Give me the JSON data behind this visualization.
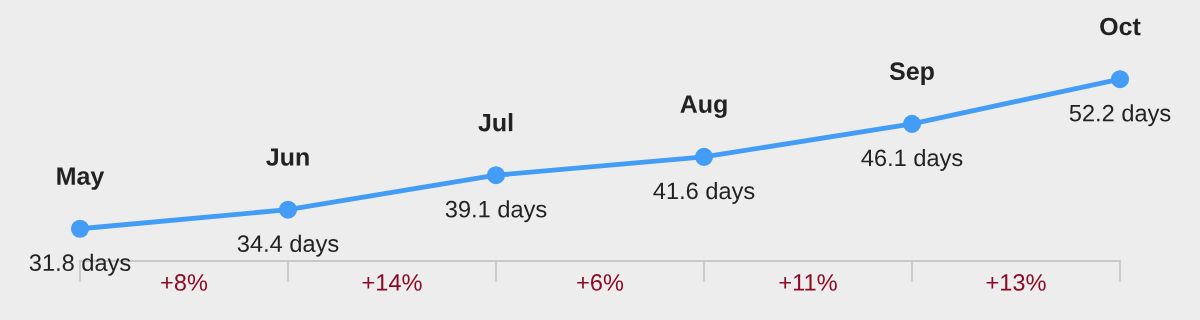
{
  "chart_data": {
    "type": "line",
    "categories": [
      "May",
      "Jun",
      "Jul",
      "Aug",
      "Sep",
      "Oct"
    ],
    "values": [
      31.8,
      34.4,
      39.1,
      41.6,
      46.1,
      52.2
    ],
    "value_labels": [
      "31.8 days",
      "34.4 days",
      "39.1 days",
      "41.6 days",
      "46.1 days",
      "52.2 days"
    ],
    "color": "#439cf5",
    "marker": "circle",
    "ylim": [
      27.4,
      63
    ],
    "annotations": [
      "+8%",
      "+14%",
      "+6%",
      "+11%",
      "+13%"
    ]
  }
}
